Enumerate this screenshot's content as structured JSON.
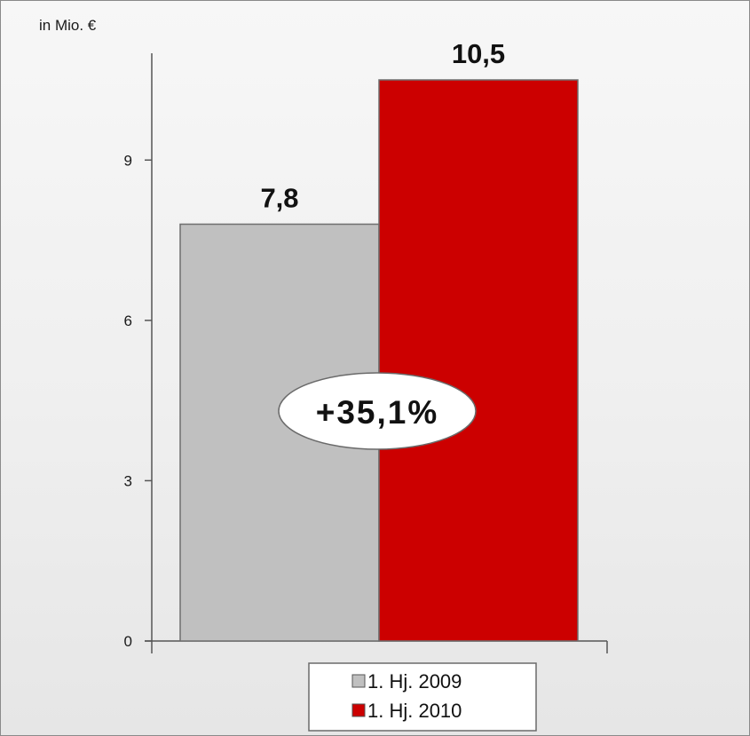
{
  "chart_data": {
    "type": "bar",
    "unit_label": "in Mio. €",
    "categories": [
      "1. Hj. 2009",
      "1. Hj. 2010"
    ],
    "values": [
      7.8,
      10.5
    ],
    "data_labels": [
      "7,8",
      "10,5"
    ],
    "colors": [
      "#c0c0c0",
      "#cc0000"
    ],
    "ylim": [
      0,
      10.5
    ],
    "yticks": [
      0,
      3,
      6,
      9
    ],
    "growth_label": "+35,1%",
    "legend": {
      "position": "bottom",
      "items": [
        {
          "label": "1. Hj. 2009",
          "color": "#c0c0c0"
        },
        {
          "label": "1. Hj. 2010",
          "color": "#cc0000"
        }
      ]
    }
  }
}
